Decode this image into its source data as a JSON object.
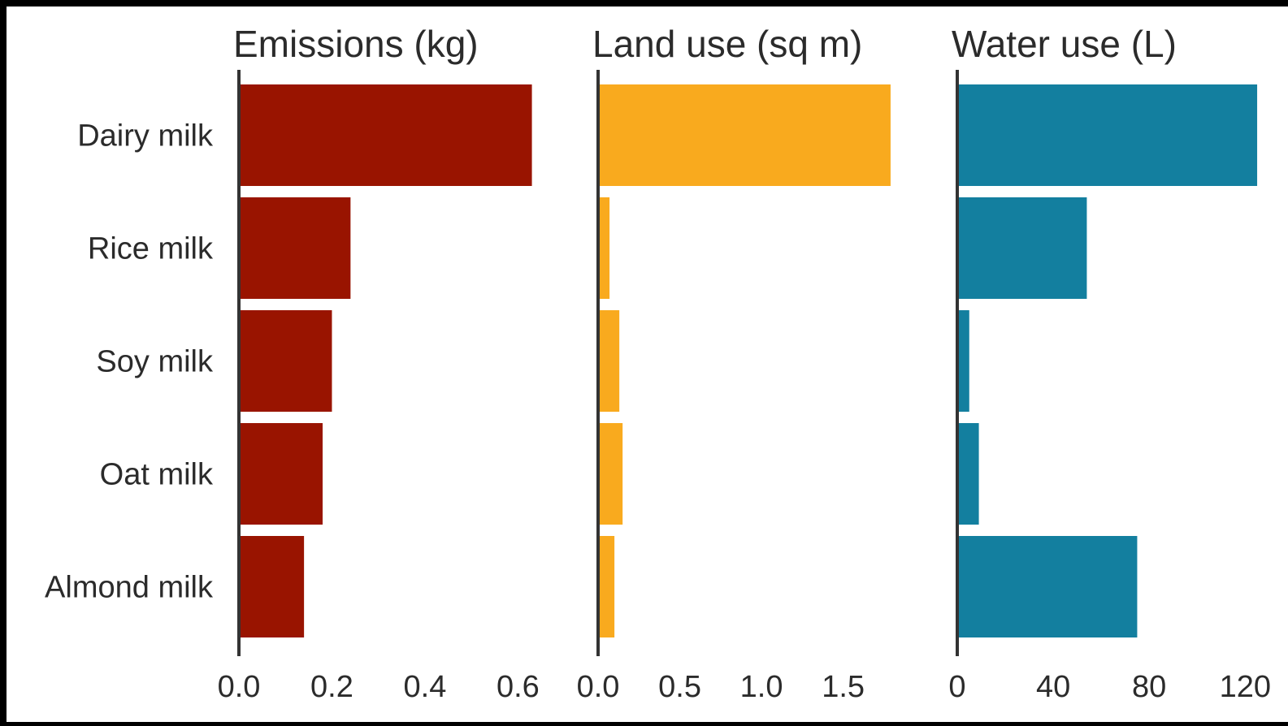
{
  "chart_data": {
    "type": "bar",
    "orientation": "horizontal",
    "categories": [
      "Dairy milk",
      "Rice milk",
      "Soy milk",
      "Oat milk",
      "Almond milk"
    ],
    "panels": [
      {
        "title": "Emissions (kg)",
        "color": "#991400",
        "values": [
          0.63,
          0.24,
          0.2,
          0.18,
          0.14
        ],
        "xlim": [
          0,
          0.65
        ],
        "ticks": [
          0,
          0.2,
          0.4,
          0.6
        ],
        "tick_labels": [
          "0.0",
          "0.2",
          "0.4",
          "0.6"
        ]
      },
      {
        "title": "Land use (sq m)",
        "color": "#F9AA1E",
        "values": [
          1.79,
          0.07,
          0.13,
          0.15,
          0.1
        ],
        "xlim": [
          0,
          1.85
        ],
        "ticks": [
          0,
          0.5,
          1.0,
          1.5
        ],
        "tick_labels": [
          "0.0",
          "0.5",
          "1.0",
          "1.5"
        ]
      },
      {
        "title": "Water use (L)",
        "color": "#137F9F",
        "values": [
          125,
          54,
          5,
          9,
          75
        ],
        "xlim": [
          0,
          126
        ],
        "ticks": [
          0,
          40,
          80,
          120
        ],
        "tick_labels": [
          "0",
          "40",
          "80",
          "120"
        ]
      }
    ],
    "legend": "none",
    "grid": false
  }
}
